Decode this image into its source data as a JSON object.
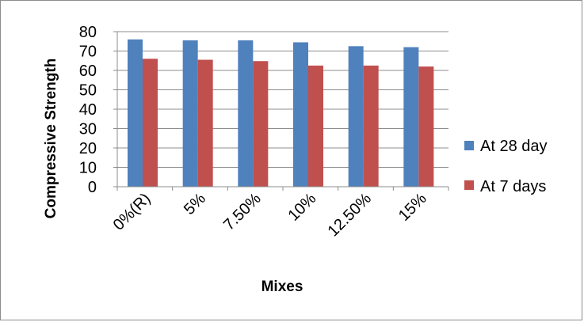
{
  "chart_data": {
    "type": "bar",
    "title": "",
    "xlabel": "Mixes",
    "ylabel": "Compressive Strength",
    "categories": [
      "0%(R)",
      "5%",
      "7.50%",
      "10%",
      "12.50%",
      "15%"
    ],
    "series": [
      {
        "name": "At 28 day",
        "color": "#4f81bd",
        "values": [
          76,
          75.5,
          75.5,
          74.5,
          72.5,
          72
        ]
      },
      {
        "name": "At 7 days",
        "color": "#c0504d",
        "values": [
          66,
          65.5,
          64.8,
          62.5,
          62.5,
          62
        ]
      }
    ],
    "ylim": [
      0,
      80
    ],
    "yticks": [
      0,
      10,
      20,
      30,
      40,
      50,
      60,
      70,
      80
    ],
    "grid": true,
    "legend_position": "right"
  }
}
